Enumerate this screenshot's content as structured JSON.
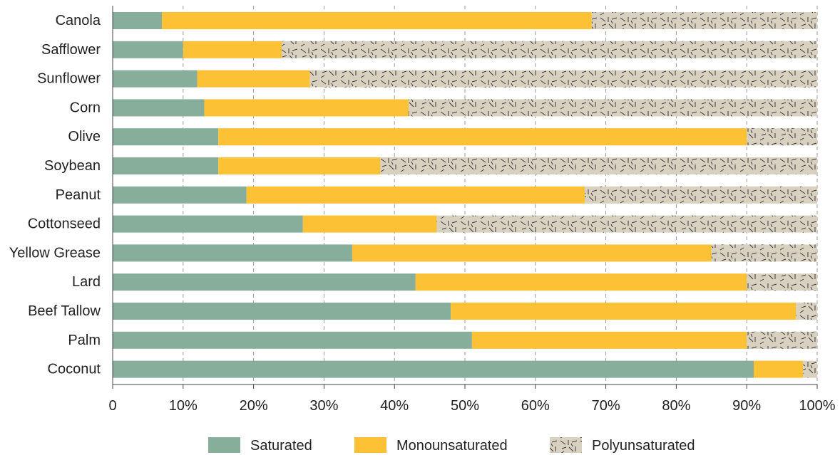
{
  "chart_data": {
    "type": "bar",
    "orientation": "horizontal",
    "stacked": true,
    "title": "",
    "xlabel": "",
    "ylabel": "",
    "xlim": [
      0,
      100
    ],
    "x_ticks": [
      "0",
      "10%",
      "20%",
      "30%",
      "40%",
      "50%",
      "60%",
      "70%",
      "80%",
      "90%",
      "100%"
    ],
    "grid": "vertical dashed",
    "legend_position": "bottom",
    "categories": [
      "Canola",
      "Safflower",
      "Sunflower",
      "Corn",
      "Olive",
      "Soybean",
      "Peanut",
      "Cottonseed",
      "Yellow Grease",
      "Lard",
      "Beef Tallow",
      "Palm",
      "Coconut"
    ],
    "series": [
      {
        "name": "Saturated",
        "color": "#86ae9a",
        "values": [
          7,
          10,
          12,
          13,
          15,
          15,
          19,
          27,
          34,
          43,
          48,
          51,
          91
        ]
      },
      {
        "name": "Monounsaturated",
        "color": "#fcc134",
        "values": [
          61,
          14,
          16,
          29,
          75,
          23,
          48,
          19,
          51,
          47,
          49,
          39,
          7
        ]
      },
      {
        "name": "Polyunsaturated",
        "color": "#d9d1c0",
        "pattern": "hatched dashes",
        "values": [
          32,
          76,
          72,
          58,
          10,
          62,
          33,
          54,
          15,
          10,
          3,
          10,
          2
        ]
      }
    ]
  }
}
